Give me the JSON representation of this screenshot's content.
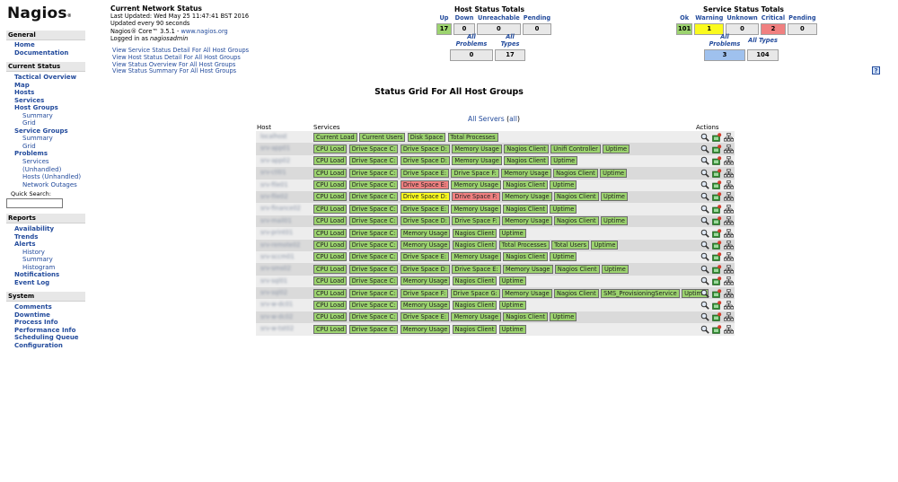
{
  "logo": {
    "text": "Nagios",
    "mark": "®"
  },
  "nav": {
    "general": {
      "header": "General",
      "links": [
        {
          "label": "Home",
          "level": "lvl1"
        },
        {
          "label": "Documentation",
          "level": "lvl1"
        }
      ]
    },
    "current_status": {
      "header": "Current Status",
      "links": [
        {
          "label": "Tactical Overview",
          "level": "lvl1"
        },
        {
          "label": "Map",
          "level": "lvl1"
        },
        {
          "label": "Hosts",
          "level": "lvl1"
        },
        {
          "label": "Services",
          "level": "lvl1"
        },
        {
          "label": "Host Groups",
          "level": "lvl1"
        },
        {
          "label": "Summary",
          "level": "lvl2"
        },
        {
          "label": "Grid",
          "level": "lvl2"
        },
        {
          "label": "Service Groups",
          "level": "lvl1"
        },
        {
          "label": "Summary",
          "level": "lvl2"
        },
        {
          "label": "Grid",
          "level": "lvl2"
        },
        {
          "label": "Problems",
          "level": "lvl1"
        },
        {
          "label": "Services",
          "level": "lvl3"
        },
        {
          "label": "(Unhandled)",
          "level": "lvl3"
        },
        {
          "label": "Hosts (Unhandled)",
          "level": "lvl3"
        },
        {
          "label": "Network Outages",
          "level": "lvl3"
        }
      ]
    },
    "quick_search_label": "Quick Search:",
    "reports": {
      "header": "Reports",
      "links": [
        {
          "label": "Availability",
          "level": "lvl1"
        },
        {
          "label": "Trends",
          "level": "lvl1"
        },
        {
          "label": "Alerts",
          "level": "lvl1"
        },
        {
          "label": "History",
          "level": "lvl4"
        },
        {
          "label": "Summary",
          "level": "lvl4"
        },
        {
          "label": "Histogram",
          "level": "lvl4"
        },
        {
          "label": "Notifications",
          "level": "lvl1"
        },
        {
          "label": "Event Log",
          "level": "lvl1"
        }
      ]
    },
    "system": {
      "header": "System",
      "links": [
        {
          "label": "Comments",
          "level": "lvl1"
        },
        {
          "label": "Downtime",
          "level": "lvl1"
        },
        {
          "label": "Process Info",
          "level": "lvl1"
        },
        {
          "label": "Performance Info",
          "level": "lvl1"
        },
        {
          "label": "Scheduling Queue",
          "level": "lvl1"
        },
        {
          "label": "Configuration",
          "level": "lvl1"
        }
      ]
    }
  },
  "info": {
    "title": "Current Network Status",
    "last_updated": "Last Updated: Wed May 25 11:47:41 BST 2016",
    "update_interval": "Updated every 90 seconds",
    "version_prefix": "Nagios® Core™ 3.5.1 - ",
    "version_link": "www.nagios.org",
    "logged_in_prefix": "Logged in as ",
    "logged_in_user": "nagiosadmin",
    "view_links": [
      "View Service Status Detail For All Host Groups",
      "View Host Status Detail For All Host Groups",
      "View Status Overview For All Host Groups",
      "View Status Summary For All Host Groups"
    ]
  },
  "host_totals": {
    "title": "Host Status Totals",
    "headers": [
      "Up",
      "Down",
      "Unreachable",
      "Pending"
    ],
    "values": [
      "17",
      "0",
      "0",
      "0"
    ],
    "value_colors": [
      "#9cd36f",
      "#e8e8e8",
      "#e8e8e8",
      "#e8e8e8"
    ],
    "problem_headers": [
      "All Problems",
      "All Types"
    ],
    "problem_values": [
      "0",
      "17"
    ],
    "problem_colors": [
      "#e8e8e8",
      "#e8e8e8"
    ]
  },
  "service_totals": {
    "title": "Service Status Totals",
    "headers": [
      "Ok",
      "Warning",
      "Unknown",
      "Critical",
      "Pending"
    ],
    "values": [
      "101",
      "1",
      "0",
      "2",
      "0"
    ],
    "value_colors": [
      "#9cd36f",
      "#fafa1e",
      "#e8e8e8",
      "#f08080",
      "#e8e8e8"
    ],
    "problem_headers": [
      "All Problems",
      "All Types"
    ],
    "problem_values": [
      "3",
      "104"
    ],
    "problem_colors": [
      "#9fc1ee",
      "#e8e8e8"
    ]
  },
  "help_icon": "?",
  "grid": {
    "title": "Status Grid For All Host Groups",
    "group_name": "All Servers",
    "group_alias": "(all)",
    "columns": [
      "Host",
      "Services",
      "Actions"
    ],
    "rows": [
      {
        "host": "localhost",
        "services": [
          [
            "Current Load",
            "ok"
          ],
          [
            "Current Users",
            "ok"
          ],
          [
            "Disk Space",
            "ok"
          ],
          [
            "Total Processes",
            "ok"
          ]
        ]
      },
      {
        "host": "srv-app01",
        "services": [
          [
            "CPU Load",
            "ok"
          ],
          [
            "Drive Space C:",
            "ok"
          ],
          [
            "Drive Space D:",
            "ok"
          ],
          [
            "Memory Usage",
            "ok"
          ],
          [
            "Nagios Client",
            "ok"
          ],
          [
            "Unifi Controller",
            "ok"
          ],
          [
            "Uptime",
            "ok"
          ]
        ]
      },
      {
        "host": "srv-app02",
        "services": [
          [
            "CPU Load",
            "ok"
          ],
          [
            "Drive Space C:",
            "ok"
          ],
          [
            "Drive Space D:",
            "ok"
          ],
          [
            "Memory Usage",
            "ok"
          ],
          [
            "Nagios Client",
            "ok"
          ],
          [
            "Uptime",
            "ok"
          ]
        ]
      },
      {
        "host": "srv-ctl01",
        "services": [
          [
            "CPU Load",
            "ok"
          ],
          [
            "Drive Space C:",
            "ok"
          ],
          [
            "Drive Space E:",
            "ok"
          ],
          [
            "Drive Space F:",
            "ok"
          ],
          [
            "Memory Usage",
            "ok"
          ],
          [
            "Nagios Client",
            "ok"
          ],
          [
            "Uptime",
            "ok"
          ]
        ]
      },
      {
        "host": "srv-file01",
        "services": [
          [
            "CPU Load",
            "ok"
          ],
          [
            "Drive Space C:",
            "ok"
          ],
          [
            "Drive Space E:",
            "crit"
          ],
          [
            "Memory Usage",
            "ok"
          ],
          [
            "Nagios Client",
            "ok"
          ],
          [
            "Uptime",
            "ok"
          ]
        ]
      },
      {
        "host": "srv-file02",
        "services": [
          [
            "CPU Load",
            "ok"
          ],
          [
            "Drive Space C:",
            "ok"
          ],
          [
            "Drive Space D:",
            "warn"
          ],
          [
            "Drive Space F:",
            "crit"
          ],
          [
            "Memory Usage",
            "ok"
          ],
          [
            "Nagios Client",
            "ok"
          ],
          [
            "Uptime",
            "ok"
          ]
        ]
      },
      {
        "host": "srv-finance02",
        "services": [
          [
            "CPU Load",
            "ok"
          ],
          [
            "Drive Space C:",
            "ok"
          ],
          [
            "Drive Space E:",
            "ok"
          ],
          [
            "Memory Usage",
            "ok"
          ],
          [
            "Nagios Client",
            "ok"
          ],
          [
            "Uptime",
            "ok"
          ]
        ]
      },
      {
        "host": "srv-mail01",
        "services": [
          [
            "CPU Load",
            "ok"
          ],
          [
            "Drive Space C:",
            "ok"
          ],
          [
            "Drive Space D:",
            "ok"
          ],
          [
            "Drive Space F:",
            "ok"
          ],
          [
            "Memory Usage",
            "ok"
          ],
          [
            "Nagios Client",
            "ok"
          ],
          [
            "Uptime",
            "ok"
          ]
        ]
      },
      {
        "host": "srv-print01",
        "services": [
          [
            "CPU Load",
            "ok"
          ],
          [
            "Drive Space C:",
            "ok"
          ],
          [
            "Memory Usage",
            "ok"
          ],
          [
            "Nagios Client",
            "ok"
          ],
          [
            "Uptime",
            "ok"
          ]
        ]
      },
      {
        "host": "srv-remote02",
        "services": [
          [
            "CPU Load",
            "ok"
          ],
          [
            "Drive Space C:",
            "ok"
          ],
          [
            "Memory Usage",
            "ok"
          ],
          [
            "Nagios Client",
            "ok"
          ],
          [
            "Total Processes",
            "ok"
          ],
          [
            "Total Users",
            "ok"
          ],
          [
            "Uptime",
            "ok"
          ]
        ]
      },
      {
        "host": "srv-sccm01",
        "services": [
          [
            "CPU Load",
            "ok"
          ],
          [
            "Drive Space C:",
            "ok"
          ],
          [
            "Drive Space E:",
            "ok"
          ],
          [
            "Memory Usage",
            "ok"
          ],
          [
            "Nagios Client",
            "ok"
          ],
          [
            "Uptime",
            "ok"
          ]
        ]
      },
      {
        "host": "srv-sms02",
        "services": [
          [
            "CPU Load",
            "ok"
          ],
          [
            "Drive Space C:",
            "ok"
          ],
          [
            "Drive Space D:",
            "ok"
          ],
          [
            "Drive Space E:",
            "ok"
          ],
          [
            "Memory Usage",
            "ok"
          ],
          [
            "Nagios Client",
            "ok"
          ],
          [
            "Uptime",
            "ok"
          ]
        ]
      },
      {
        "host": "srv-sql01",
        "services": [
          [
            "CPU Load",
            "ok"
          ],
          [
            "Drive Space C:",
            "ok"
          ],
          [
            "Memory Usage",
            "ok"
          ],
          [
            "Nagios Client",
            "ok"
          ],
          [
            "Uptime",
            "ok"
          ]
        ]
      },
      {
        "host": "srv-sql02",
        "services": [
          [
            "CPU Load",
            "ok"
          ],
          [
            "Drive Space C:",
            "ok"
          ],
          [
            "Drive Space F:",
            "ok"
          ],
          [
            "Drive Space G:",
            "ok"
          ],
          [
            "Memory Usage",
            "ok"
          ],
          [
            "Nagios Client",
            "ok"
          ],
          [
            "SMS_ProvisioningService",
            "ok"
          ],
          [
            "Uptime",
            "ok"
          ]
        ]
      },
      {
        "host": "srv-w-dc01",
        "services": [
          [
            "CPU Load",
            "ok"
          ],
          [
            "Drive Space C:",
            "ok"
          ],
          [
            "Memory Usage",
            "ok"
          ],
          [
            "Nagios Client",
            "ok"
          ],
          [
            "Uptime",
            "ok"
          ]
        ]
      },
      {
        "host": "srv-w-dc02",
        "services": [
          [
            "CPU Load",
            "ok"
          ],
          [
            "Drive Space C:",
            "ok"
          ],
          [
            "Drive Space E:",
            "ok"
          ],
          [
            "Memory Usage",
            "ok"
          ],
          [
            "Nagios Client",
            "ok"
          ],
          [
            "Uptime",
            "ok"
          ]
        ]
      },
      {
        "host": "srv-w-tst02",
        "services": [
          [
            "CPU Load",
            "ok"
          ],
          [
            "Drive Space C:",
            "ok"
          ],
          [
            "Memory Usage",
            "ok"
          ],
          [
            "Nagios Client",
            "ok"
          ],
          [
            "Uptime",
            "ok"
          ]
        ]
      }
    ],
    "action_icons": [
      "magnifier-icon",
      "service-status-icon",
      "network-map-icon"
    ]
  }
}
